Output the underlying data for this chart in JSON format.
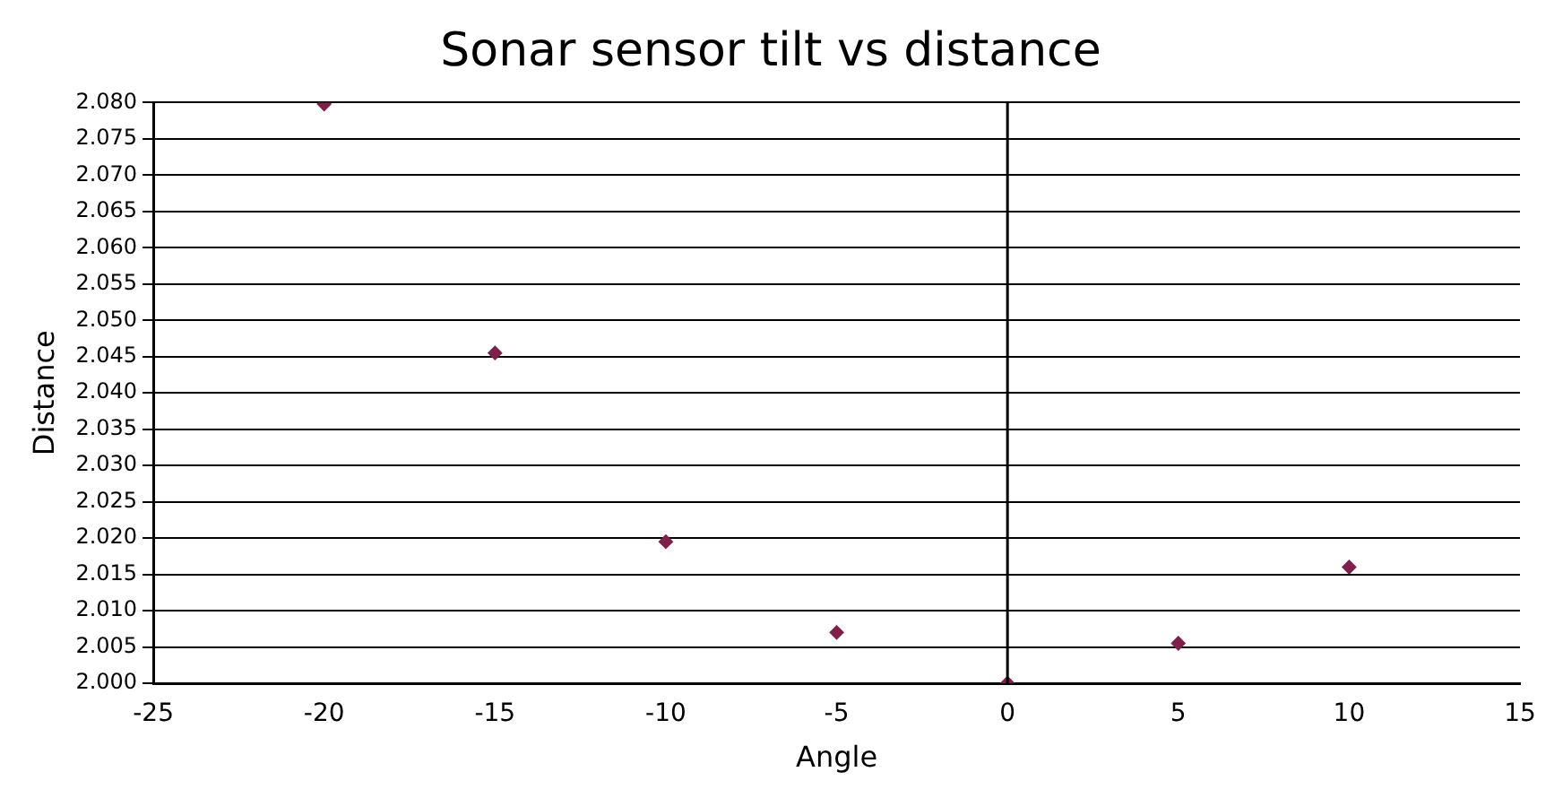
{
  "chart_data": {
    "type": "scatter",
    "title": "Sonar sensor tilt vs distance",
    "xlabel": "Angle",
    "ylabel": "Distance",
    "x": [
      -20,
      -15,
      -10,
      -5,
      0,
      5,
      10
    ],
    "series": [
      {
        "color": "#80204a",
        "values": [
          2.0798,
          2.0455,
          2.0195,
          2.007,
          2.0,
          2.0055,
          2.016
        ]
      }
    ],
    "xlim": [
      -25,
      15
    ],
    "xticks": [
      -25,
      -20,
      -15,
      -10,
      -5,
      0,
      5,
      10,
      15
    ],
    "ylim": [
      2.0,
      2.08
    ],
    "yticks": [
      {
        "value": 2.0,
        "label": "2.000"
      },
      {
        "value": 2.005,
        "label": "2.005"
      },
      {
        "value": 2.01,
        "label": "2.010"
      },
      {
        "value": 2.015,
        "label": "2.015"
      },
      {
        "value": 2.02,
        "label": "2.020"
      },
      {
        "value": 2.025,
        "label": "2.025"
      },
      {
        "value": 2.03,
        "label": "2.030"
      },
      {
        "value": 2.035,
        "label": "2.035"
      },
      {
        "value": 2.04,
        "label": "2.040"
      },
      {
        "value": 2.045,
        "label": "2.045"
      },
      {
        "value": 2.05,
        "label": "2.050"
      },
      {
        "value": 2.055,
        "label": "2.055"
      },
      {
        "value": 2.06,
        "label": "2.060"
      },
      {
        "value": 2.065,
        "label": "2.065"
      },
      {
        "value": 2.07,
        "label": "2.070"
      },
      {
        "value": 2.075,
        "label": "2.075"
      },
      {
        "value": 2.08,
        "label": "2.080"
      }
    ],
    "grid": "y",
    "legend": false,
    "marker": "diamond",
    "ref_lines": [
      {
        "axis": "x",
        "value": 0,
        "color": "#000000"
      }
    ]
  }
}
